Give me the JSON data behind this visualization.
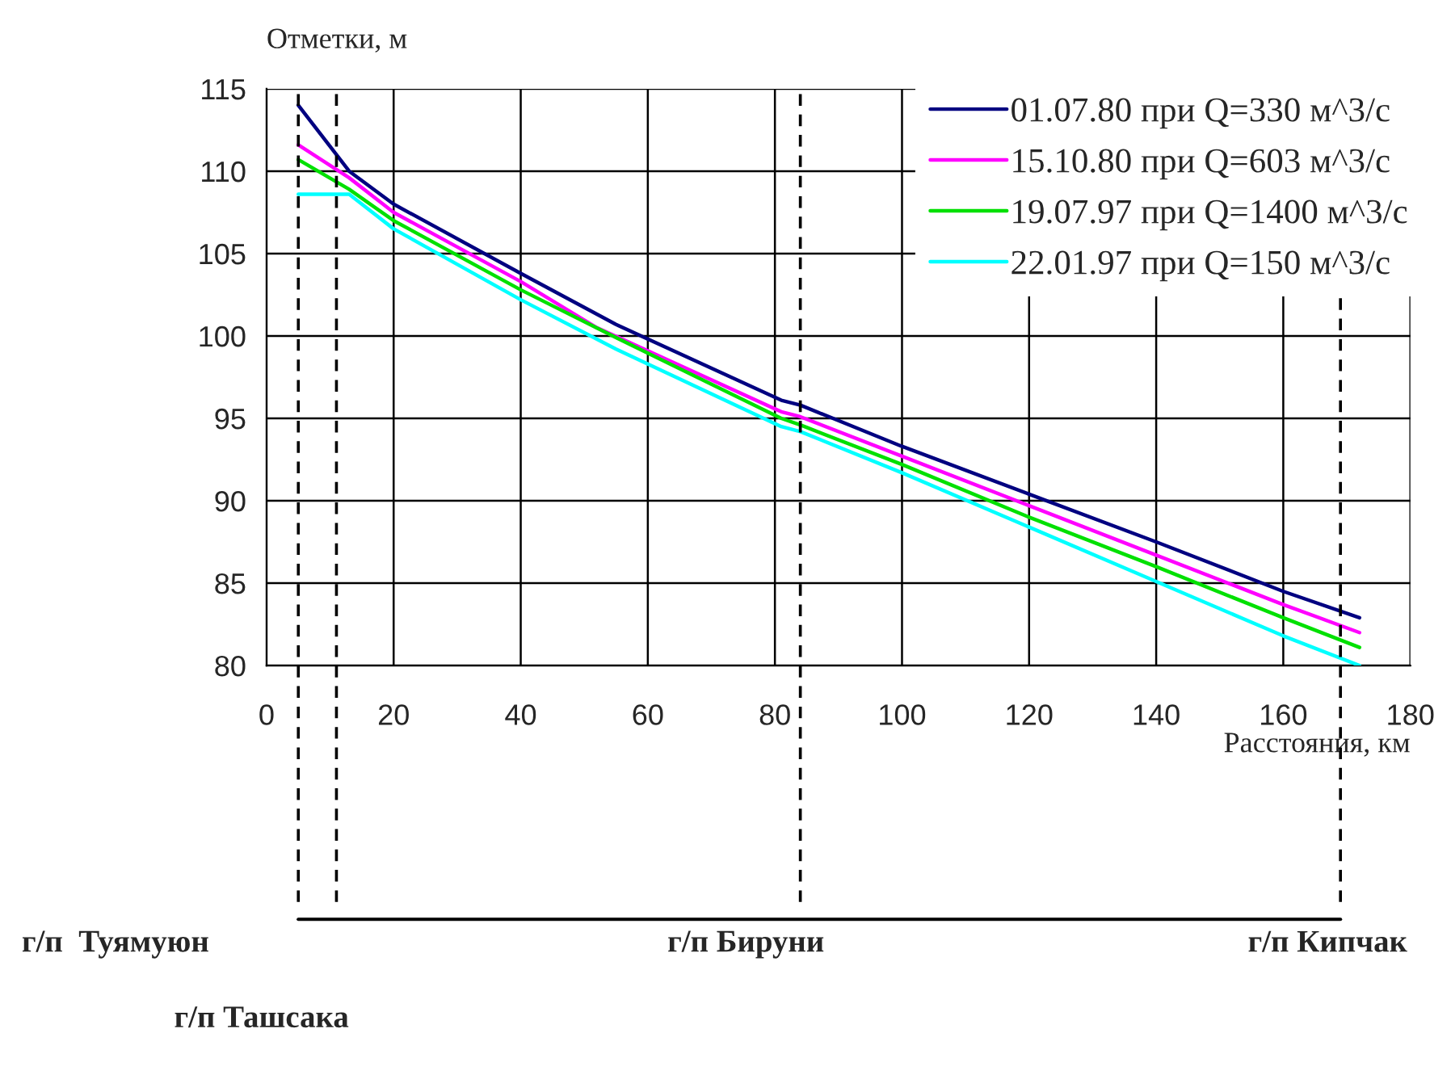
{
  "chart_data": {
    "type": "line",
    "xlabel": "Расстояния, км",
    "ylabel": "Отметки, м",
    "xlim": [
      0,
      180
    ],
    "xticks": [
      0,
      20,
      40,
      60,
      80,
      100,
      120,
      140,
      160,
      180
    ],
    "ylim": [
      80,
      115
    ],
    "yticks": [
      80,
      85,
      90,
      95,
      100,
      105,
      110,
      115
    ],
    "grid": true,
    "legend": "top right",
    "line_style": "solid",
    "marker": "none",
    "series": [
      {
        "name": "01.07.80 при Q=330 м^3/с",
        "color": "#000080",
        "x": [
          5,
          13,
          20,
          40,
          55,
          81,
          84,
          100,
          120,
          140,
          160,
          172
        ],
        "values": [
          114,
          110,
          108,
          103.8,
          100.7,
          96.1,
          95.8,
          93.3,
          90.4,
          87.5,
          84.5,
          82.9
        ]
      },
      {
        "name": "15.10.80 при Q=603 м^3/с",
        "color": "#ff00ff",
        "x": [
          5,
          13,
          20,
          40,
          52,
          81,
          84,
          100,
          120,
          140,
          160,
          172
        ],
        "values": [
          111.6,
          109.6,
          107.5,
          103.3,
          100.5,
          95.4,
          95.1,
          92.7,
          89.7,
          86.7,
          83.7,
          82.0
        ]
      },
      {
        "name": "19.07.97 при Q=1400 м^3/с",
        "color": "#00e000",
        "x": [
          5,
          13,
          20,
          40,
          55,
          81,
          84,
          100,
          120,
          140,
          160,
          172
        ],
        "values": [
          110.7,
          108.9,
          107.0,
          102.8,
          99.9,
          95.0,
          94.6,
          92.2,
          89.0,
          86.0,
          82.9,
          81.1
        ]
      },
      {
        "name": "22.01.97 при Q=150 м^3/с",
        "color": "#00ffff",
        "x": [
          5,
          13,
          20,
          40,
          55,
          81,
          84,
          100,
          120,
          140,
          160,
          172
        ],
        "values": [
          108.6,
          108.6,
          106.5,
          102.2,
          99.2,
          94.5,
          94.2,
          91.7,
          88.4,
          85.1,
          81.8,
          80.0
        ]
      }
    ],
    "ref_lines": [
      {
        "axis": "x",
        "value": 5,
        "line_style": "dashed",
        "color": "#000000"
      },
      {
        "axis": "x",
        "value": 11,
        "line_style": "dashed",
        "color": "#000000"
      },
      {
        "axis": "x",
        "value": 84,
        "line_style": "dashed",
        "color": "#000000"
      },
      {
        "axis": "x",
        "value": 169,
        "line_style": "dashed",
        "color": "#000000"
      }
    ],
    "annotations": [
      "г/п  Туямуюн",
      "г/п Ташсака",
      "г/п Бируни",
      "г/п Кипчак"
    ]
  }
}
